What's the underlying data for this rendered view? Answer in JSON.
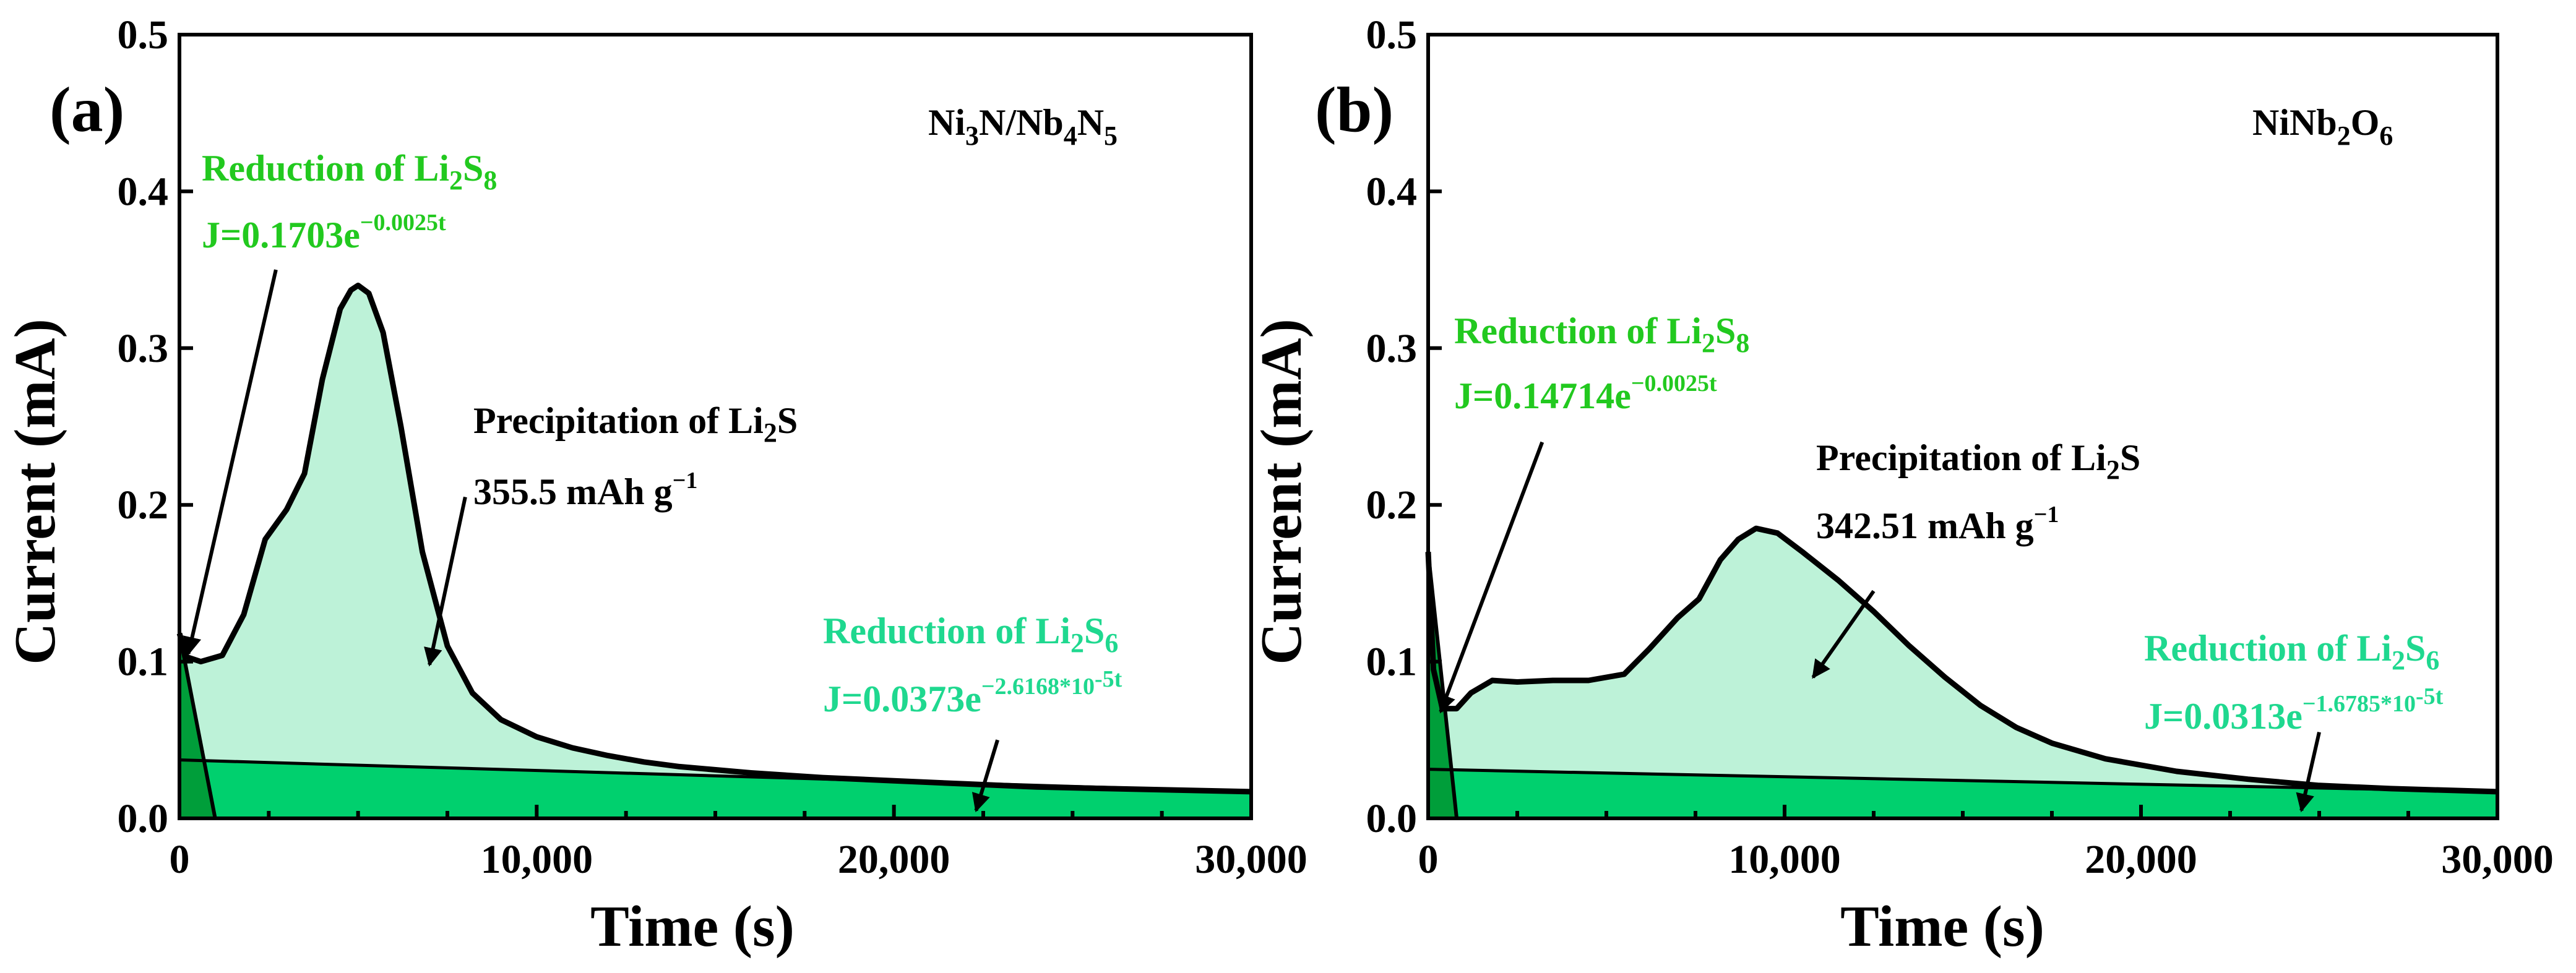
{
  "colors": {
    "frame": "#000000",
    "precipitation_fill": "#bdf2d8",
    "reduction_fill": "#00d06e",
    "reduction_fill_dark": "#009e3a",
    "green_text_a": "#22c91f",
    "green_text_b": "#1fd88f"
  },
  "chart_data": [
    {
      "type": "area",
      "panel_label": "(a)",
      "sample_label": {
        "base1": "Ni",
        "sub1": "3",
        "base2": "N/Nb",
        "sub2": "4",
        "base3": "N",
        "sub3": "5"
      },
      "xlabel": "Time (s)",
      "ylabel": "Current (mA)",
      "xlim": [
        0,
        30000
      ],
      "ylim": [
        0,
        0.5
      ],
      "x_ticks": [
        0,
        10000,
        20000,
        30000
      ],
      "x_tick_labels": [
        "0",
        "10,000",
        "20,000",
        "30,000"
      ],
      "y_ticks": [
        0,
        0.1,
        0.2,
        0.3,
        0.4,
        0.5
      ],
      "y_tick_labels": [
        "0.0",
        "0.1",
        "0.2",
        "0.3",
        "0.4",
        "0.5"
      ],
      "current_curve": {
        "x": [
          0,
          200,
          600,
          1200,
          1800,
          2400,
          3000,
          3500,
          4000,
          4500,
          4800,
          5000,
          5300,
          5700,
          6200,
          6800,
          7500,
          8200,
          9000,
          10000,
          11000,
          12000,
          13000,
          14000,
          16000,
          18000,
          20000,
          22000,
          24000,
          26000,
          28000,
          30000
        ],
        "y": [
          0.118,
          0.103,
          0.1,
          0.104,
          0.13,
          0.178,
          0.197,
          0.22,
          0.28,
          0.325,
          0.337,
          0.34,
          0.335,
          0.31,
          0.25,
          0.17,
          0.11,
          0.08,
          0.063,
          0.052,
          0.045,
          0.04,
          0.036,
          0.033,
          0.029,
          0.026,
          0.024,
          0.022,
          0.02,
          0.019,
          0.018,
          0.017
        ]
      },
      "li2s6_baseline": {
        "x": [
          0,
          30000
        ],
        "y": [
          0.0373,
          0.017
        ]
      },
      "li2s8_triangle": {
        "x": [
          0,
          0,
          1000
        ],
        "y": [
          0,
          0.118,
          0
        ]
      },
      "annotations": {
        "li2s8_title": {
          "prefix": "Reduction of Li",
          "sub": "2",
          "mid": "S",
          "sub2": "8"
        },
        "li2s8_eq": {
          "prefix": "J=0.1703e",
          "sup": "−0.0025t"
        },
        "precip_title": {
          "prefix": "Precipitation of Li",
          "sub": "2",
          "suffix": "S"
        },
        "precip_capacity": {
          "prefix": "355.5 mAh g",
          "sup": "−1"
        },
        "li2s6_title": {
          "prefix": "Reduction of Li",
          "sub": "2",
          "mid": "S",
          "sub2": "6"
        },
        "li2s6_eq": {
          "prefix": "J=0.0373e",
          "sup": "−2.6168*10",
          "sup2": "-5t"
        }
      },
      "arrows": [
        {
          "from": [
            2700,
            0.35
          ],
          "to": [
            250,
            0.105
          ]
        },
        {
          "from": [
            8000,
            0.205
          ],
          "to": [
            7000,
            0.098
          ]
        },
        {
          "from": [
            22900,
            0.05
          ],
          "to": [
            22300,
            0.005
          ]
        }
      ]
    },
    {
      "type": "area",
      "panel_label": "(b)",
      "sample_label": {
        "base1": "NiNb",
        "sub1": "2",
        "base2": "O",
        "sub2": "6"
      },
      "xlabel": "Time (s)",
      "ylabel": "Current (mA)",
      "xlim": [
        0,
        30000
      ],
      "ylim": [
        0,
        0.5
      ],
      "x_ticks": [
        0,
        10000,
        20000,
        30000
      ],
      "x_tick_labels": [
        "0",
        "10,000",
        "20,000",
        "30,000"
      ],
      "y_ticks": [
        0,
        0.1,
        0.2,
        0.3,
        0.4,
        0.5
      ],
      "y_tick_labels": [
        "0.0",
        "0.1",
        "0.2",
        "0.3",
        "0.4",
        "0.5"
      ],
      "current_curve": {
        "x": [
          0,
          150,
          400,
          800,
          1200,
          1800,
          2500,
          3500,
          4500,
          5500,
          6200,
          7000,
          7600,
          8200,
          8700,
          9200,
          9800,
          10500,
          11500,
          12500,
          13500,
          14500,
          15500,
          16500,
          17500,
          19000,
          21000,
          23000,
          25000,
          27000,
          30000
        ],
        "y": [
          0.17,
          0.095,
          0.07,
          0.07,
          0.08,
          0.088,
          0.087,
          0.088,
          0.088,
          0.092,
          0.108,
          0.128,
          0.14,
          0.165,
          0.178,
          0.185,
          0.182,
          0.17,
          0.152,
          0.132,
          0.11,
          0.09,
          0.072,
          0.058,
          0.048,
          0.038,
          0.03,
          0.025,
          0.021,
          0.019,
          0.017
        ]
      },
      "li2s6_baseline": {
        "x": [
          0,
          30000
        ],
        "y": [
          0.0313,
          0.017
        ]
      },
      "li2s8_triangle": {
        "x": [
          0,
          0,
          800
        ],
        "y": [
          0,
          0.17,
          0
        ]
      },
      "annotations": {
        "li2s8_title": {
          "prefix": "Reduction of Li",
          "sub": "2",
          "mid": "S",
          "sub2": "8"
        },
        "li2s8_eq": {
          "prefix": "J=0.14714e",
          "sup": "−0.0025t"
        },
        "precip_title": {
          "prefix": "Precipitation of Li",
          "sub": "2",
          "suffix": "S"
        },
        "precip_capacity": {
          "prefix": "342.51 mAh g",
          "sup": "−1"
        },
        "li2s6_title": {
          "prefix": "Reduction of Li",
          "sub": "2",
          "mid": "S",
          "sub2": "6"
        },
        "li2s6_eq": {
          "prefix": "J=0.0313e",
          "sup": "−1.6785*10",
          "sup2": "-5t"
        }
      },
      "arrows": [
        {
          "from": [
            3200,
            0.24
          ],
          "to": [
            350,
            0.068
          ]
        },
        {
          "from": [
            12500,
            0.145
          ],
          "to": [
            10800,
            0.09
          ]
        },
        {
          "from": [
            25000,
            0.055
          ],
          "to": [
            24500,
            0.005
          ]
        }
      ]
    }
  ]
}
